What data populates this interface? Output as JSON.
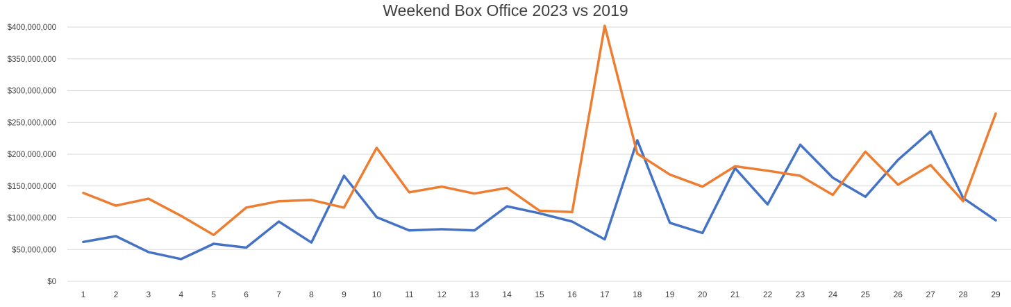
{
  "chart_data": {
    "type": "line",
    "title": "Weekend Box Office 2023 vs 2019",
    "xlabel": "",
    "ylabel": "",
    "x": [
      "1",
      "2",
      "3",
      "4",
      "5",
      "6",
      "7",
      "8",
      "9",
      "10",
      "11",
      "12",
      "13",
      "14",
      "15",
      "16",
      "17",
      "18",
      "19",
      "20",
      "21",
      "22",
      "23",
      "24",
      "25",
      "26",
      "27",
      "28",
      "29"
    ],
    "ylim": [
      0,
      400000000
    ],
    "yticks": [
      0,
      50000000,
      100000000,
      150000000,
      200000000,
      250000000,
      300000000,
      350000000,
      400000000
    ],
    "ytick_labels": [
      "$0",
      "$50,000,000",
      "$100,000,000",
      "$150,000,000",
      "$200,000,000",
      "$250,000,000",
      "$300,000,000",
      "$350,000,000",
      "$400,000,000"
    ],
    "grid": true,
    "legend": "none",
    "series": [
      {
        "color": "#4472c4",
        "values": [
          62000000,
          71000000,
          46000000,
          35000000,
          59000000,
          53000000,
          94000000,
          61000000,
          166000000,
          101000000,
          80000000,
          82000000,
          80000000,
          118000000,
          107000000,
          94000000,
          66000000,
          222000000,
          92000000,
          76000000,
          178000000,
          121000000,
          215000000,
          163000000,
          133000000,
          191000000,
          236000000,
          131000000,
          96000000
        ]
      },
      {
        "color": "#ed7d31",
        "values": [
          139000000,
          119000000,
          130000000,
          103000000,
          73000000,
          116000000,
          126000000,
          128000000,
          116000000,
          210000000,
          140000000,
          149000000,
          138000000,
          147000000,
          111000000,
          109000000,
          402000000,
          201000000,
          168000000,
          149000000,
          181000000,
          174000000,
          166000000,
          136000000,
          204000000,
          152000000,
          183000000,
          126000000,
          264000000
        ]
      }
    ]
  }
}
